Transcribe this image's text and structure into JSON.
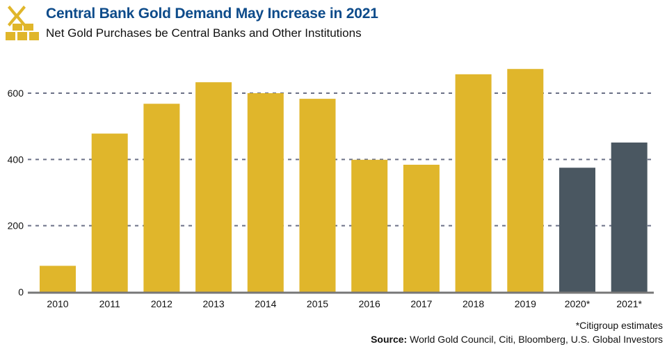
{
  "header": {
    "title": "Central Bank Gold Demand May Increase in 2021",
    "subtitle": "Net Gold Purchases be Central Banks and Other Institutions",
    "logo_icon": "gold-bars-icon"
  },
  "footer": {
    "note": "*Citigroup estimates",
    "source_label": "Source:",
    "source_text": " World Gold Council, Citi, Bloomberg, U.S. Global Investors"
  },
  "chart_data": {
    "type": "bar",
    "title": "Central Bank Gold Demand May Increase in 2021",
    "subtitle": "Net Gold Purchases be Central Banks and Other Institutions",
    "xlabel": "",
    "ylabel": "",
    "categories": [
      "2010",
      "2011",
      "2012",
      "2013",
      "2014",
      "2015",
      "2016",
      "2017",
      "2018",
      "2019",
      "2020*",
      "2021*"
    ],
    "values": [
      79,
      478,
      568,
      633,
      600,
      583,
      399,
      384,
      657,
      673,
      375,
      451
    ],
    "estimate": [
      false,
      false,
      false,
      false,
      false,
      false,
      false,
      false,
      false,
      false,
      true,
      true
    ],
    "ylim": [
      0,
      700
    ],
    "yticks": [
      0,
      200,
      400,
      600
    ],
    "grid": "horizontal dashed",
    "colors": {
      "actual": "#e0b62b",
      "estimate": "#4a5761",
      "grid": "#6b7086",
      "axis": "#777777"
    }
  }
}
